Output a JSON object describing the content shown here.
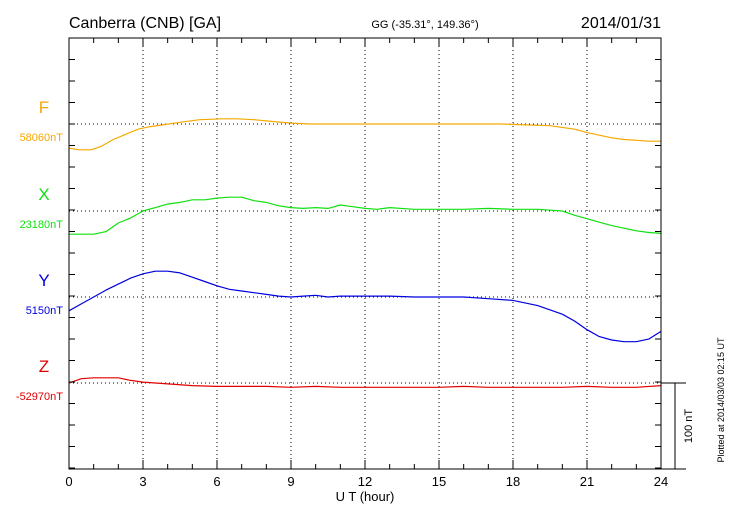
{
  "header": {
    "station": "Canberra (CNB)  [GA]",
    "coords": "GG (-35.31°, 149.36°)",
    "date": "2014/01/31"
  },
  "footer": {
    "plotted": "Plotted at 2014/03/03 02:15 UT"
  },
  "scale": {
    "label": "100 nT"
  },
  "chart_data": {
    "type": "line",
    "xlabel": "U T (hour)",
    "xlim": [
      0,
      24
    ],
    "xticks": [
      0,
      3,
      6,
      9,
      12,
      15,
      18,
      21,
      24
    ],
    "grid": true,
    "scale_bar_nT": 100,
    "series": [
      {
        "name": "F",
        "baseline_label": "58060nT",
        "baseline": 58060,
        "color": "#f5a800",
        "x": [
          0,
          0.4,
          0.9,
          1.3,
          1.8,
          2.3,
          2.8,
          3.3,
          3.8,
          4.5,
          5.3,
          6.2,
          6.8,
          7.5,
          8.2,
          9.0,
          9.8,
          10.5,
          11.5,
          12.5,
          13.5,
          14.5,
          15.5,
          16.5,
          17.5,
          18.5,
          19.5,
          20.5,
          21.0,
          21.5,
          22.0,
          22.5,
          23.0,
          23.5,
          24.0
        ],
        "values": [
          58032,
          58030,
          58030,
          58034,
          58042,
          58048,
          58054,
          58057,
          58059,
          58062,
          58065,
          58066,
          58066,
          58065,
          58063,
          58061,
          58060,
          58060,
          58060,
          58060,
          58060,
          58060,
          58060,
          58060,
          58060,
          58059,
          58058,
          58054,
          58050,
          58047,
          58044,
          58042,
          58041,
          58040,
          58040
        ]
      },
      {
        "name": "X",
        "baseline_label": "23180nT",
        "baseline": 23180,
        "color": "#10e010",
        "x": [
          0,
          0.5,
          1.0,
          1.5,
          2.0,
          2.5,
          3.0,
          3.5,
          4.0,
          4.5,
          5.0,
          5.5,
          6.0,
          6.5,
          7.0,
          7.5,
          8.0,
          8.5,
          9.0,
          9.5,
          10.0,
          10.5,
          11.0,
          11.5,
          12.0,
          12.5,
          13.0,
          14.0,
          15.0,
          16.0,
          17.0,
          18.0,
          19.0,
          20.0,
          20.5,
          21.0,
          21.5,
          22.0,
          22.5,
          23.0,
          23.5,
          24.0
        ],
        "values": [
          23153,
          23153,
          23153,
          23156,
          23166,
          23172,
          23180,
          23184,
          23188,
          23190,
          23193,
          23193,
          23195,
          23196,
          23196,
          23192,
          23190,
          23186,
          23184,
          23183,
          23184,
          23183,
          23187,
          23185,
          23183,
          23182,
          23184,
          23182,
          23182,
          23182,
          23183,
          23182,
          23182,
          23180,
          23175,
          23171,
          23167,
          23163,
          23160,
          23157,
          23155,
          23154
        ]
      },
      {
        "name": "Y",
        "baseline_label": "5150nT",
        "baseline": 5150,
        "color": "#0000e0",
        "x": [
          0,
          0.5,
          1.0,
          1.5,
          2.0,
          2.5,
          3.0,
          3.5,
          4.0,
          4.5,
          5.0,
          5.5,
          6.0,
          6.5,
          7.0,
          7.5,
          8.0,
          8.5,
          9.0,
          9.5,
          10.0,
          10.5,
          11.0,
          12.0,
          13.0,
          14.0,
          15.0,
          16.0,
          17.0,
          18.0,
          19.0,
          20.0,
          20.5,
          21.0,
          21.5,
          22.0,
          22.5,
          23.0,
          23.5,
          24.0
        ],
        "values": [
          5134,
          5142,
          5150,
          5158,
          5165,
          5172,
          5177,
          5180,
          5180,
          5178,
          5173,
          5168,
          5163,
          5159,
          5157,
          5155,
          5153,
          5151,
          5150,
          5151,
          5152,
          5150,
          5151,
          5151,
          5151,
          5150,
          5150,
          5150,
          5148,
          5146,
          5140,
          5130,
          5122,
          5112,
          5104,
          5100,
          5098,
          5098,
          5101,
          5110
        ]
      },
      {
        "name": "Z",
        "baseline_label": "-52970nT",
        "baseline": -52970,
        "color": "#e00000",
        "x": [
          0,
          0.5,
          1.0,
          1.5,
          2.0,
          2.5,
          3.0,
          4.0,
          5.0,
          6.0,
          7.0,
          8.0,
          9.0,
          10.0,
          11.0,
          12.0,
          13.0,
          14.0,
          15.0,
          16.0,
          17.0,
          18.0,
          19.0,
          20.0,
          21.0,
          22.0,
          23.0,
          24.0
        ],
        "values": [
          -52970,
          -52965,
          -52964,
          -52964,
          -52964,
          -52967,
          -52969,
          -52971,
          -52973,
          -52974,
          -52974,
          -52974,
          -52975,
          -52974,
          -52975,
          -52975,
          -52975,
          -52975,
          -52975,
          -52974,
          -52975,
          -52975,
          -52975,
          -52975,
          -52974,
          -52975,
          -52975,
          -52973
        ]
      }
    ]
  }
}
